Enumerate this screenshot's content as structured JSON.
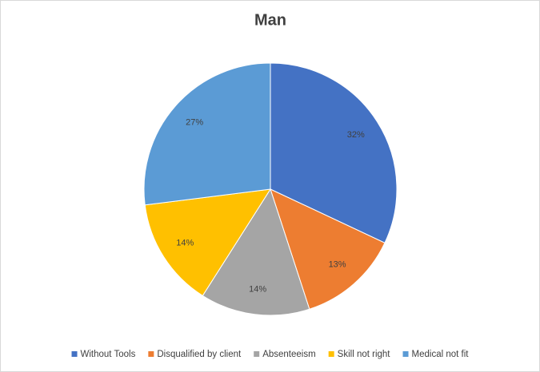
{
  "chart_data": {
    "type": "pie",
    "title": "Man",
    "categories": [
      "Without Tools",
      "Disqualified by client",
      "Absenteeism",
      "Skill not right",
      "Medical not fit"
    ],
    "values": [
      32,
      13,
      14,
      14,
      27
    ],
    "value_labels": [
      "32%",
      "13%",
      "14%",
      "14%",
      "27%"
    ],
    "colors": [
      "#4472c4",
      "#ed7d31",
      "#a5a5a5",
      "#ffc000",
      "#5b9bd5"
    ],
    "legend": "bottom"
  }
}
